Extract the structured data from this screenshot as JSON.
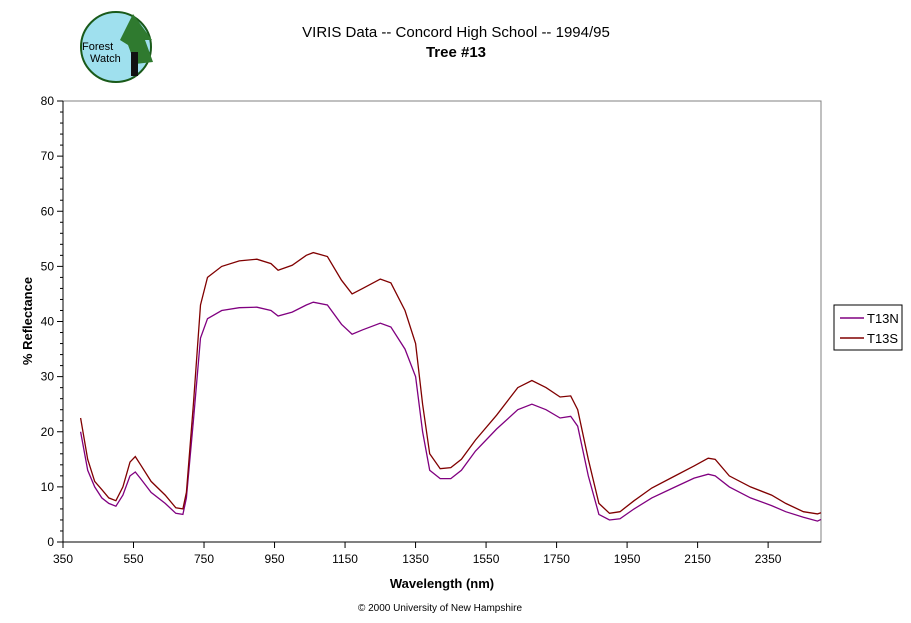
{
  "logo": {
    "text": "Forest Watch",
    "icon": "forest-watch-logo"
  },
  "chart_data": {
    "type": "line",
    "title": "VIRIS Data -- Concord High School -- 1994/95",
    "subtitle": "Tree #13",
    "xlabel": "Wavelength (nm)",
    "ylabel": "% Reflectance",
    "xlim": [
      350,
      2500
    ],
    "ylim": [
      0,
      80
    ],
    "xticks": [
      350,
      550,
      750,
      950,
      1150,
      1350,
      1550,
      1750,
      1950,
      2150,
      2350
    ],
    "yticks": [
      0,
      10,
      20,
      30,
      40,
      50,
      60,
      70,
      80
    ],
    "grid": false,
    "legend_placement": "right",
    "x": [
      400,
      420,
      440,
      460,
      480,
      500,
      520,
      540,
      555,
      570,
      600,
      640,
      670,
      690,
      700,
      720,
      740,
      760,
      800,
      850,
      900,
      940,
      960,
      1000,
      1040,
      1060,
      1100,
      1140,
      1170,
      1200,
      1250,
      1280,
      1320,
      1350,
      1370,
      1390,
      1420,
      1450,
      1480,
      1520,
      1580,
      1640,
      1680,
      1720,
      1760,
      1790,
      1810,
      1840,
      1870,
      1900,
      1930,
      1970,
      2020,
      2080,
      2140,
      2180,
      2200,
      2240,
      2300,
      2360,
      2400,
      2450,
      2490,
      2500
    ],
    "series": [
      {
        "name": "T13N",
        "color": "#800080",
        "values": [
          20,
          13,
          10,
          8,
          7,
          6.5,
          8.5,
          12,
          12.7,
          11.5,
          9,
          7,
          5.2,
          5,
          8,
          22,
          37,
          40.5,
          42,
          42.5,
          42.6,
          42,
          41,
          41.7,
          43,
          43.5,
          43,
          39.5,
          37.7,
          38.5,
          39.7,
          39,
          35,
          30,
          20,
          13,
          11.5,
          11.5,
          13,
          16.5,
          20.5,
          24,
          25,
          24,
          22.5,
          22.8,
          21,
          12,
          5,
          4,
          4.2,
          6,
          8,
          9.8,
          11.6,
          12.3,
          12,
          10,
          8,
          6.6,
          5.5,
          4.5,
          3.8,
          4.1
        ]
      },
      {
        "name": "T13S",
        "color": "#800000",
        "values": [
          22.5,
          15,
          11,
          9.5,
          8,
          7.5,
          10,
          14.5,
          15.5,
          14,
          11,
          8.5,
          6.2,
          6,
          9,
          25,
          43,
          48,
          50,
          51,
          51.3,
          50.5,
          49.3,
          50.2,
          52,
          52.5,
          51.8,
          47.5,
          45,
          46,
          47.7,
          47,
          42,
          36,
          25,
          16,
          13.3,
          13.5,
          15,
          18.5,
          23,
          28,
          29.3,
          28,
          26.3,
          26.5,
          24,
          15,
          7,
          5.2,
          5.5,
          7.5,
          9.8,
          11.8,
          13.8,
          15.2,
          15,
          12,
          10,
          8.5,
          7,
          5.5,
          5.1,
          5.3
        ]
      }
    ]
  },
  "footer": {
    "copyright": "© 2000 University of New Hampshire"
  }
}
